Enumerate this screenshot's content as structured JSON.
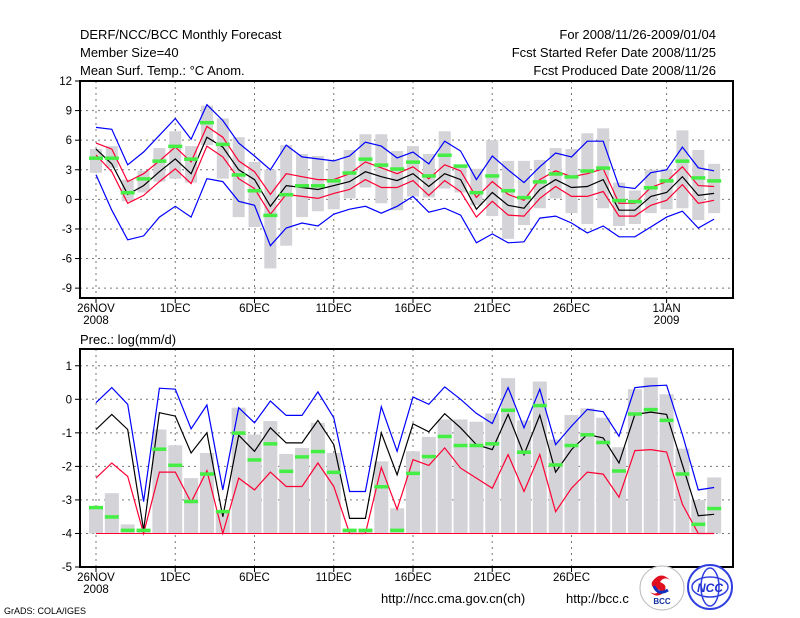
{
  "header": {
    "title": "DERF/NCC/BCC Monthly Forecast",
    "member_size": "Member Size=40",
    "variable": "Mean Surf. Temp.: °C Anom.",
    "period": "For 2008/11/26-2009/01/04",
    "started": "Fcst Started Refer Date 2008/11/25",
    "produced": "Fcst Produced Date 2008/11/26"
  },
  "footer": {
    "grads": "GrADS: COLA/IGES",
    "url1": "http://ncc.cma.gov.cn(ch)",
    "url2": "http://bcc.c",
    "logo_bcc": "BCC",
    "logo_ncc": "NCC"
  },
  "colors": {
    "max_min": "#0000ff",
    "spread": "#ff0033",
    "mean": "#000000",
    "marker": "#44ee44",
    "box": "#d3d3d8"
  },
  "chart_data": [
    {
      "type": "line",
      "title": "Mean Surf. Temp.: °C Anom.",
      "ylim": [
        -10,
        12
      ],
      "yticks": [
        "12",
        "9",
        "6",
        "3",
        "0",
        "-3",
        "-6",
        "-9"
      ],
      "ytick_values": [
        12,
        9,
        6,
        3,
        0,
        -3,
        -6,
        -9
      ],
      "xticks": [
        {
          "day": 0,
          "label": "26NOV",
          "sub": "2008"
        },
        {
          "day": 5,
          "label": "1DEC"
        },
        {
          "day": 10,
          "label": "6DEC"
        },
        {
          "day": 15,
          "label": "11DEC"
        },
        {
          "day": 20,
          "label": "16DEC"
        },
        {
          "day": 25,
          "label": "21DEC"
        },
        {
          "day": 30,
          "label": "26DEC"
        },
        {
          "day": 36,
          "label": "1JAN",
          "sub": "2009"
        }
      ],
      "grid": true,
      "days": 40,
      "series": {
        "max": [
          7.3,
          7.1,
          3.5,
          4.8,
          6.5,
          8.2,
          6.1,
          9.6,
          8.0,
          5.7,
          4.4,
          3.0,
          5.5,
          4.3,
          4.1,
          3.9,
          4.4,
          5.8,
          5.4,
          4.2,
          4.8,
          3.6,
          5.9,
          4.9,
          2.0,
          4.4,
          3.0,
          1.7,
          3.3,
          4.7,
          4.3,
          5.9,
          5.9,
          1.3,
          1.1,
          2.7,
          3.0,
          5.3,
          3.2,
          2.9
        ],
        "upper": [
          5.7,
          5.1,
          1.8,
          2.6,
          3.9,
          5.3,
          3.8,
          7.4,
          6.3,
          3.9,
          2.8,
          0.5,
          2.6,
          2.3,
          2.0,
          2.0,
          2.6,
          3.8,
          3.2,
          2.6,
          3.3,
          2.1,
          3.5,
          2.9,
          0.2,
          1.8,
          0.5,
          -0.1,
          2.0,
          2.9,
          2.3,
          2.6,
          3.1,
          -0.4,
          -0.4,
          1.2,
          1.8,
          3.3,
          1.4,
          1.3
        ],
        "mean": [
          5.1,
          3.6,
          0.5,
          1.4,
          2.8,
          4.1,
          2.6,
          6.3,
          5.3,
          3.0,
          2.0,
          -0.7,
          1.4,
          1.2,
          1.0,
          1.4,
          1.8,
          2.8,
          2.3,
          1.9,
          2.6,
          1.3,
          2.6,
          2.0,
          -1.0,
          0.7,
          -0.6,
          -0.9,
          1.0,
          2.0,
          1.2,
          1.3,
          2.0,
          -1.1,
          -1.1,
          0.3,
          0.7,
          2.3,
          0.4,
          0.6
        ],
        "lower": [
          4.5,
          2.8,
          -0.4,
          0.4,
          1.8,
          3.1,
          1.6,
          5.4,
          4.3,
          2.1,
          1.1,
          -1.5,
          0.5,
          0.3,
          0.1,
          0.6,
          1.0,
          2.0,
          1.2,
          1.2,
          1.9,
          0.4,
          1.9,
          0.8,
          -1.8,
          -0.2,
          -1.6,
          -1.7,
          0.1,
          1.3,
          0.3,
          0.3,
          0.8,
          -1.7,
          -1.7,
          -0.6,
          -0.1,
          1.5,
          -0.4,
          -0.1
        ],
        "min": [
          2.5,
          -1.1,
          -4.1,
          -3.7,
          -1.8,
          -0.7,
          -1.8,
          2.1,
          1.8,
          -0.2,
          -0.6,
          -4.7,
          -2.9,
          -2.4,
          -2.7,
          -1.5,
          -1.0,
          -0.7,
          -1.4,
          -0.7,
          0.3,
          -1.3,
          -0.9,
          -1.6,
          -4.4,
          -3.5,
          -4.4,
          -4.3,
          -1.9,
          -1.7,
          -2.4,
          -3.4,
          -2.7,
          -3.8,
          -3.8,
          -2.8,
          -1.8,
          -1.2,
          -2.9,
          -2.0
        ],
        "marker": [
          4.2,
          4.2,
          0.7,
          2.1,
          3.9,
          5.4,
          4.1,
          7.8,
          5.6,
          2.5,
          0.9,
          -1.6,
          0.5,
          1.4,
          1.4,
          1.9,
          2.7,
          4.1,
          3.5,
          3.1,
          3.8,
          2.4,
          4.5,
          3.4,
          0.7,
          2.4,
          0.9,
          0.2,
          1.8,
          2.6,
          2.3,
          2.9,
          3.2,
          -0.1,
          -0.2,
          1.2,
          1.9,
          3.9,
          2.2,
          1.9
        ],
        "box_low": [
          2.7,
          3.2,
          -0.2,
          0.7,
          1.8,
          2.1,
          1.7,
          5.5,
          2.1,
          -1.8,
          -2.8,
          -7.0,
          -4.7,
          -1.8,
          -1.2,
          -1.0,
          0.1,
          1.2,
          -0.4,
          -1.1,
          0.3,
          0.2,
          1.1,
          0.7,
          -0.6,
          -1.7,
          -4.0,
          -2.6,
          -0.9,
          0.1,
          -1.4,
          -2.5,
          -0.9,
          -2.7,
          -2.5,
          -1.4,
          -1.0,
          -0.9,
          -2.1,
          -1.4
        ],
        "box_high": [
          5.1,
          5.4,
          2.0,
          2.9,
          5.2,
          6.9,
          5.4,
          9.5,
          8.2,
          6.3,
          3.8,
          3.0,
          5.5,
          4.6,
          4.4,
          4.0,
          5.0,
          6.6,
          6.6,
          4.9,
          5.4,
          4.6,
          6.9,
          3.5,
          3.1,
          6.0,
          3.9,
          3.9,
          4.0,
          5.2,
          5.1,
          6.7,
          7.2,
          1.7,
          0.9,
          3.0,
          3.1,
          7.0,
          5.0,
          3.6
        ]
      }
    },
    {
      "type": "line",
      "title": "Prec.: log(mm/d)",
      "ylim": [
        -5,
        1.5
      ],
      "yticks": [
        "1",
        "0",
        "-1",
        "-2",
        "-3",
        "-4",
        "-5"
      ],
      "ytick_values": [
        1,
        0,
        -1,
        -2,
        -3,
        -4,
        -5
      ],
      "xticks": [
        {
          "day": 0,
          "label": "26NOV",
          "sub": "2008"
        },
        {
          "day": 5,
          "label": "1DEC"
        },
        {
          "day": 10,
          "label": "6DEC"
        },
        {
          "day": 15,
          "label": "11DEC"
        },
        {
          "day": 20,
          "label": "16DEC"
        },
        {
          "day": 25,
          "label": "21DEC"
        },
        {
          "day": 30,
          "label": "26DEC"
        }
      ],
      "grid": true,
      "days": 40,
      "baseline": -4,
      "series": {
        "max": [
          -0.1,
          0.35,
          -0.15,
          -3.05,
          0.33,
          0.3,
          -0.88,
          -0.17,
          -2.7,
          -0.25,
          -0.7,
          -0.05,
          -0.48,
          -0.48,
          0.22,
          -0.55,
          -2.75,
          -2.75,
          -0.22,
          -1.55,
          0.07,
          -0.15,
          0.37,
          0,
          -0.42,
          -0.72,
          0.35,
          -0.85,
          0.3,
          -1.35,
          -0.8,
          -0.3,
          -0.37,
          -1.1,
          0.35,
          0.4,
          0.42,
          -1.05,
          -2.7,
          -2.63
        ],
        "mean": [
          -0.9,
          -0.45,
          -0.9,
          -3.9,
          -0.4,
          -0.5,
          -1.6,
          -1.0,
          -3.5,
          -1.07,
          -1.55,
          -0.85,
          -1.3,
          -1.3,
          -0.63,
          -1.35,
          -3.55,
          -3.55,
          -1.0,
          -2.25,
          -0.73,
          -0.97,
          -0.43,
          -0.85,
          -1.35,
          -1.5,
          -0.45,
          -1.65,
          -0.47,
          -2.17,
          -1.5,
          -1.05,
          -1.15,
          -1.9,
          -0.45,
          -0.38,
          -0.45,
          -1.95,
          -3.47,
          -3.43
        ],
        "lower": [
          -2.35,
          -1.9,
          -2.3,
          -4.0,
          -2.17,
          -2.17,
          -3.07,
          -2.13,
          -4.0,
          -2.35,
          -2.7,
          -2.17,
          -2.6,
          -2.6,
          -1.9,
          -2.6,
          -4.0,
          -4.0,
          -2.03,
          -3.28,
          -1.8,
          -1.97,
          -1.45,
          -2.05,
          -2.35,
          -2.65,
          -1.65,
          -2.75,
          -1.65,
          -3.35,
          -2.65,
          -2.17,
          -2.23,
          -2.92,
          -1.53,
          -1.5,
          -1.57,
          -3.13,
          -4.0,
          -4.0
        ],
        "marker": [
          -3.22,
          -3.5,
          -3.9,
          -3.9,
          -1.48,
          -1.96,
          -3.04,
          -2.22,
          -3.34,
          -1.0,
          -1.8,
          -1.32,
          -2.14,
          -1.71,
          -1.55,
          -2.17,
          -3.9,
          -3.9,
          -2.6,
          -3.9,
          -2.2,
          -1.7,
          -1.1,
          -1.37,
          -1.37,
          -1.32,
          -0.32,
          -1.57,
          -0.18,
          -1.95,
          -1.37,
          -1.05,
          -1.28,
          -2.13,
          -0.43,
          -0.3,
          -0.62,
          -2.22,
          -3.72,
          -3.25
        ],
        "bar_top": [
          -3.25,
          -2.8,
          -3.73,
          -3.9,
          -0.9,
          -1.37,
          -2.35,
          -1.6,
          -3.3,
          -0.25,
          -1.05,
          -0.65,
          -1.63,
          -1.45,
          -0.7,
          -1.6,
          -3.9,
          -3.9,
          -1.85,
          -3.25,
          -1.55,
          -1.12,
          -0.6,
          -0.6,
          -0.67,
          -0.42,
          0.63,
          -0.63,
          0.53,
          -1.2,
          -0.47,
          -0.27,
          -0.55,
          -1.43,
          0.3,
          0.65,
          0.15,
          -1.47,
          -3.0,
          -2.33
        ]
      }
    }
  ]
}
